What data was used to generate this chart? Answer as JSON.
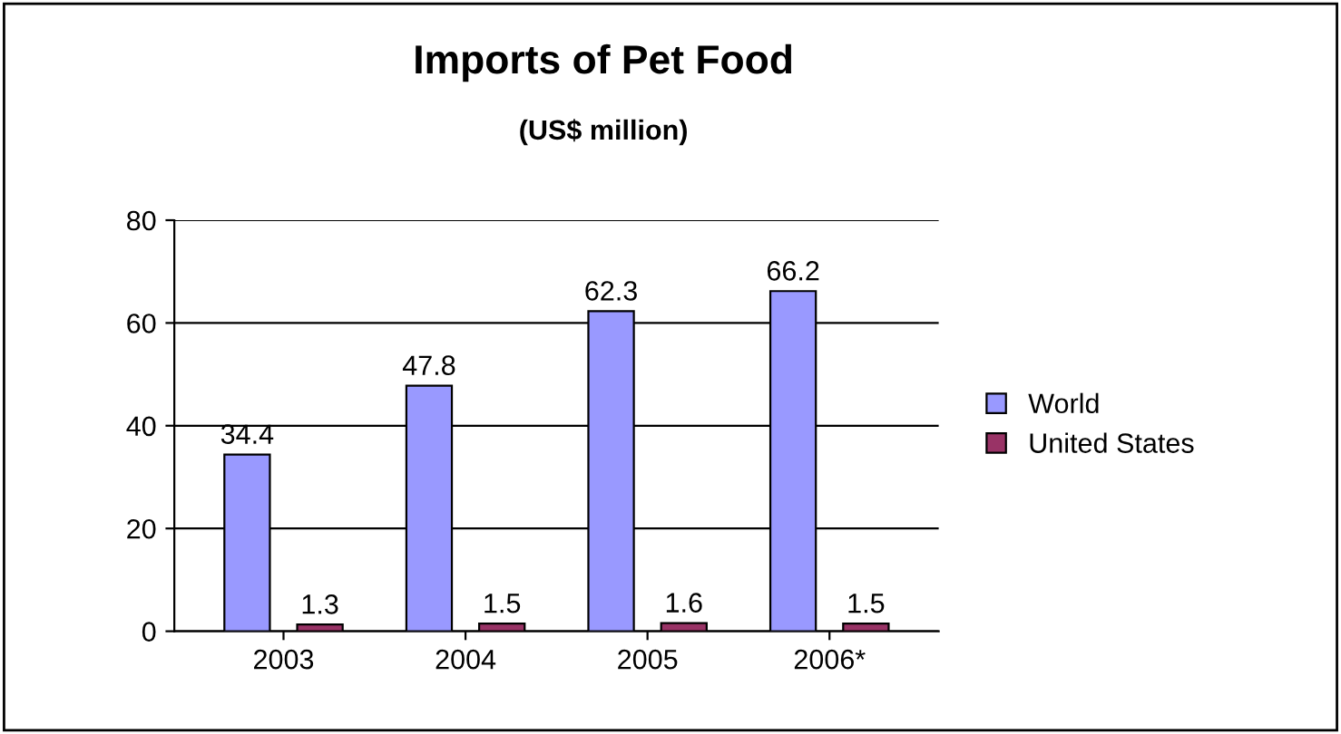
{
  "chart_data": {
    "type": "bar",
    "title": "Imports of Pet Food",
    "subtitle": "(US$ million)",
    "categories": [
      "2003",
      "2004",
      "2005",
      "2006*"
    ],
    "series": [
      {
        "name": "World",
        "color": "#9999ff",
        "values": [
          34.4,
          47.8,
          62.3,
          66.2
        ]
      },
      {
        "name": "United States",
        "color": "#993366",
        "values": [
          1.3,
          1.5,
          1.6,
          1.5
        ]
      }
    ],
    "ylim": [
      0,
      80
    ],
    "yticks": [
      0,
      20,
      40,
      60,
      80
    ],
    "grid": "y",
    "legend": "right",
    "data_labels": true
  }
}
